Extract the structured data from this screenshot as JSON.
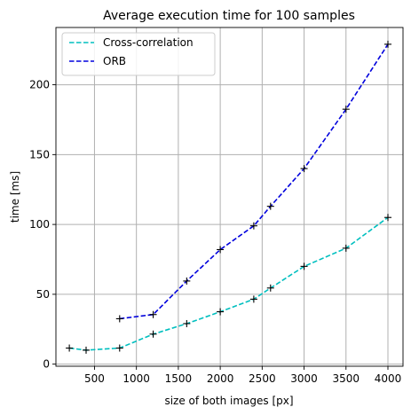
{
  "chart_data": {
    "type": "line",
    "title": "Average execution time for 100 samples",
    "xlabel": "size of both images [px]",
    "ylabel": "time [ms]",
    "xlim": [
      40,
      4180
    ],
    "ylim": [
      -1.5,
      241
    ],
    "xticks": [
      500,
      1000,
      1500,
      2000,
      2500,
      3000,
      3500,
      4000
    ],
    "yticks": [
      0,
      50,
      100,
      150,
      200
    ],
    "grid": true,
    "legend_position": "top-left",
    "series": [
      {
        "name": "Cross-correlation",
        "color": "#00bfbf",
        "marker_color": "#000000",
        "x": [
          200,
          400,
          800,
          1200,
          1600,
          2000,
          2400,
          2600,
          3000,
          3500,
          4000
        ],
        "y": [
          11.5,
          10,
          11.5,
          21.5,
          29,
          37.5,
          46.5,
          54.5,
          70,
          83,
          105
        ]
      },
      {
        "name": "ORB",
        "color": "#0000dd",
        "marker_color": "#000000",
        "x": [
          800,
          1200,
          1600,
          2000,
          2400,
          2600,
          3000,
          3500,
          4000
        ],
        "y": [
          32.5,
          35.5,
          59.5,
          82,
          99,
          113,
          140,
          182.5,
          229
        ]
      }
    ]
  }
}
